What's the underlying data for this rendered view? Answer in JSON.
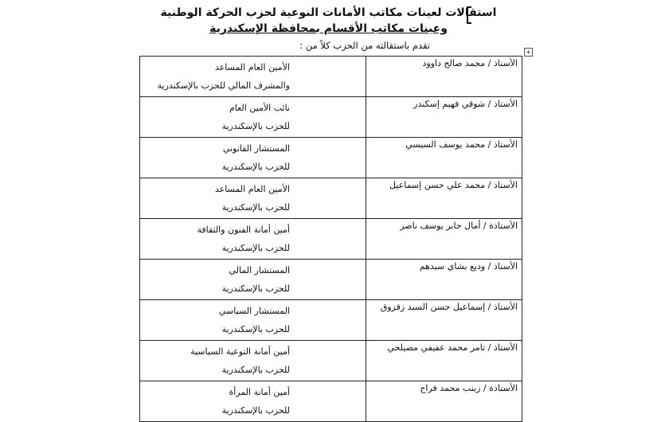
{
  "header": {
    "title_line1": "استقالات لعينات مكاتب الأمانات النوعية لحزب الحركة الوطنية",
    "title_line2": "وعينات مكاتب الأقسام بمحافظة الإسكندرية",
    "intro": "تقدم باستقالته من الحزب كلاً من :"
  },
  "icons": {
    "table_move": "move-icon"
  },
  "rows": [
    {
      "name": "الأستاذ / محمد صالح داوود",
      "role1": "الأمين العام المساعد",
      "role2": "والمشرف المالي للحزب بالإسكندرية"
    },
    {
      "name": "الأستاذ / شوقي فهيم إسكندر",
      "role1": "نائب الأمين العام",
      "role2": "للحزب بالإسكندرية"
    },
    {
      "name": "الأستاذ / محمد يوسف السيسي",
      "role1": "المستشار القانوني",
      "role2": "للحزب بالإسكندرية"
    },
    {
      "name": "الأستاذ / محمد علي حسن إسماعيل",
      "role1": "الأمين العام المساعد",
      "role2": "للحزب بالإسكندرية"
    },
    {
      "name": "الأستاذة / أمال جابر يوسف ناصر",
      "role1": "أمين أمانة الفنون والثقافة",
      "role2": "للحزب بالإسكندرية"
    },
    {
      "name": "الأستاذ / وديع بشاي سيدهم",
      "role1": "المستشار المالي",
      "role2": "للحزب بالإسكندرية"
    },
    {
      "name": "الأستاذ / إسماعيل حسن السيد زفزوق",
      "role1": "المستشار السياسي",
      "role2": "للحزب بالإسكندرية"
    },
    {
      "name": "الأستاذ / تامر محمد عفيفي مصيلحي",
      "role1": "أمين أمانة التوعية السياسية",
      "role2": "للحزب بالإسكندرية"
    },
    {
      "name": "الأستاذة / زينب محمد فراج",
      "role1": "أمين أمانة المرأة",
      "role2": "للحزب بالإسكندرية"
    }
  ]
}
